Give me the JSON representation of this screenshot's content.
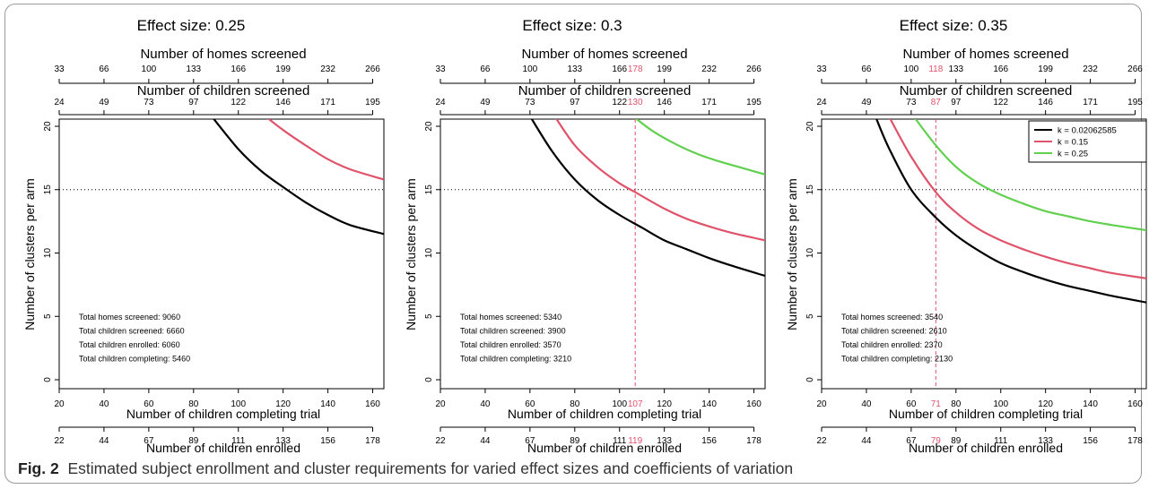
{
  "caption": {
    "label": "Fig. 2",
    "text": "Estimated subject enrollment and cluster requirements for varied effect sizes and coefficients of variation"
  },
  "colors": {
    "k1": "#000000",
    "k2": "#DF536B",
    "k3": "#61D04F"
  },
  "chart_data": [
    {
      "type": "line",
      "title": "Effect size: 0.25",
      "xlabel": "Number of children completing trial",
      "ylabel": "Number of clusters per arm",
      "xlim": [
        20,
        165
      ],
      "ylim": [
        0,
        20
      ],
      "xticks": [
        20,
        40,
        60,
        80,
        100,
        120,
        140,
        160
      ],
      "yticks": [
        0,
        5,
        10,
        15,
        20
      ],
      "reference_line_y": 15,
      "axis_homes": {
        "label": "Number of homes screened",
        "ticks": [
          "33",
          "66",
          "100",
          "133",
          "166",
          "199",
          "232",
          "266"
        ]
      },
      "axis_children_screened": {
        "label": "Number of children screened",
        "ticks": [
          "24",
          "49",
          "73",
          "97",
          "122",
          "146",
          "171",
          "195"
        ]
      },
      "axis_enrolled": {
        "label": "Number of children enrolled",
        "ticks": [
          "22",
          "44",
          "67",
          "89",
          "111",
          "133",
          "156",
          "178"
        ]
      },
      "highlight": null,
      "series": [
        {
          "name": "k = 0.02062585",
          "color": "#000000",
          "x": [
            88,
            100,
            110,
            120,
            130,
            140,
            150,
            165
          ],
          "y": [
            20.8,
            18.2,
            16.5,
            15.2,
            14.0,
            13.0,
            12.2,
            11.5
          ]
        },
        {
          "name": "k = 0.15",
          "color": "#DF536B",
          "x": [
            112,
            120,
            130,
            140,
            150,
            165
          ],
          "y": [
            20.8,
            19.7,
            18.5,
            17.4,
            16.6,
            15.8
          ]
        }
      ],
      "annotations": [
        "Total homes screened: 9060",
        "Total children screened: 6660",
        "Total children enrolled: 6060",
        "Total children completing: 5460"
      ]
    },
    {
      "type": "line",
      "title": "Effect size: 0.3",
      "xlabel": "Number of children completing trial",
      "ylabel": "Number of clusters per arm",
      "xlim": [
        20,
        165
      ],
      "ylim": [
        0,
        20
      ],
      "xticks": [
        20,
        40,
        60,
        80,
        100,
        120,
        140,
        160
      ],
      "yticks": [
        0,
        5,
        10,
        15,
        20
      ],
      "reference_line_y": 15,
      "axis_homes": {
        "label": "Number of homes screened",
        "ticks": [
          "33",
          "66",
          "100",
          "133",
          "166",
          "199",
          "232",
          "266"
        ]
      },
      "axis_children_screened": {
        "label": "Number of children screened",
        "ticks": [
          "24",
          "49",
          "73",
          "97",
          "122",
          "146",
          "171",
          "195"
        ]
      },
      "axis_enrolled": {
        "label": "Number of children enrolled",
        "ticks": [
          "22",
          "44",
          "67",
          "89",
          "111",
          "133",
          "156",
          "178"
        ]
      },
      "highlight": {
        "x": 107,
        "homes": "178",
        "children_screened": "130",
        "enrolled": "119"
      },
      "series": [
        {
          "name": "k = 0.02062585",
          "color": "#000000",
          "x": [
            60,
            70,
            80,
            90,
            100,
            110,
            120,
            130,
            140,
            150,
            165
          ],
          "y": [
            20.8,
            18.0,
            15.8,
            14.2,
            13.0,
            12.0,
            11.0,
            10.3,
            9.6,
            9.0,
            8.2
          ]
        },
        {
          "name": "k = 0.15",
          "color": "#DF536B",
          "x": [
            71,
            80,
            90,
            100,
            107,
            120,
            130,
            140,
            150,
            165
          ],
          "y": [
            20.8,
            18.5,
            16.8,
            15.5,
            14.8,
            13.5,
            12.7,
            12.1,
            11.6,
            11.0
          ]
        },
        {
          "name": "k = 0.25",
          "color": "#61D04F",
          "x": [
            106,
            115,
            125,
            135,
            145,
            155,
            165
          ],
          "y": [
            20.8,
            19.6,
            18.6,
            17.8,
            17.2,
            16.7,
            16.2
          ]
        }
      ],
      "annotations": [
        "Total homes screened: 5340",
        "Total children screened: 3900",
        "Total children enrolled: 3570",
        "Total children completing: 3210"
      ]
    },
    {
      "type": "line",
      "title": "Effect size: 0.35",
      "xlabel": "Number of children completing trial",
      "ylabel": "Number of clusters per arm",
      "xlim": [
        20,
        165
      ],
      "ylim": [
        0,
        20
      ],
      "xticks": [
        20,
        40,
        60,
        80,
        100,
        120,
        140,
        160
      ],
      "yticks": [
        0,
        5,
        10,
        15,
        20
      ],
      "reference_line_y": 15,
      "axis_homes": {
        "label": "Number of homes screened",
        "ticks": [
          "33",
          "66",
          "100",
          "133",
          "166",
          "199",
          "232",
          "266"
        ]
      },
      "axis_children_screened": {
        "label": "Number of children screened",
        "ticks": [
          "24",
          "49",
          "73",
          "97",
          "122",
          "146",
          "171",
          "195"
        ]
      },
      "axis_enrolled": {
        "label": "Number of children enrolled",
        "ticks": [
          "22",
          "44",
          "67",
          "89",
          "111",
          "133",
          "156",
          "178"
        ]
      },
      "highlight": {
        "x": 71,
        "homes": "118",
        "children_screened": "87",
        "enrolled": "79"
      },
      "legend": {
        "position": "top-right",
        "entries": [
          "k = 0.02062585",
          "k = 0.15",
          "k = 0.25"
        ]
      },
      "series": [
        {
          "name": "k = 0.02062585",
          "color": "#000000",
          "x": [
            44,
            50,
            60,
            71,
            80,
            90,
            100,
            110,
            120,
            130,
            140,
            150,
            165
          ],
          "y": [
            20.8,
            18.3,
            15.0,
            12.8,
            11.4,
            10.2,
            9.2,
            8.5,
            7.9,
            7.4,
            7.0,
            6.6,
            6.1
          ]
        },
        {
          "name": "k = 0.15",
          "color": "#DF536B",
          "x": [
            50,
            60,
            71,
            80,
            90,
            100,
            110,
            120,
            130,
            140,
            150,
            165
          ],
          "y": [
            20.8,
            17.6,
            14.8,
            13.2,
            11.9,
            11.0,
            10.3,
            9.7,
            9.2,
            8.8,
            8.4,
            8.0
          ]
        },
        {
          "name": "k = 0.25",
          "color": "#61D04F",
          "x": [
            61,
            71,
            80,
            90,
            100,
            110,
            120,
            130,
            140,
            150,
            165
          ],
          "y": [
            20.8,
            18.5,
            16.8,
            15.5,
            14.6,
            13.9,
            13.3,
            12.9,
            12.5,
            12.2,
            11.8
          ]
        }
      ],
      "annotations": [
        "Total homes screened: 3540",
        "Total children screened: 2610",
        "Total children enrolled: 2370",
        "Total children completing: 2130"
      ]
    }
  ]
}
